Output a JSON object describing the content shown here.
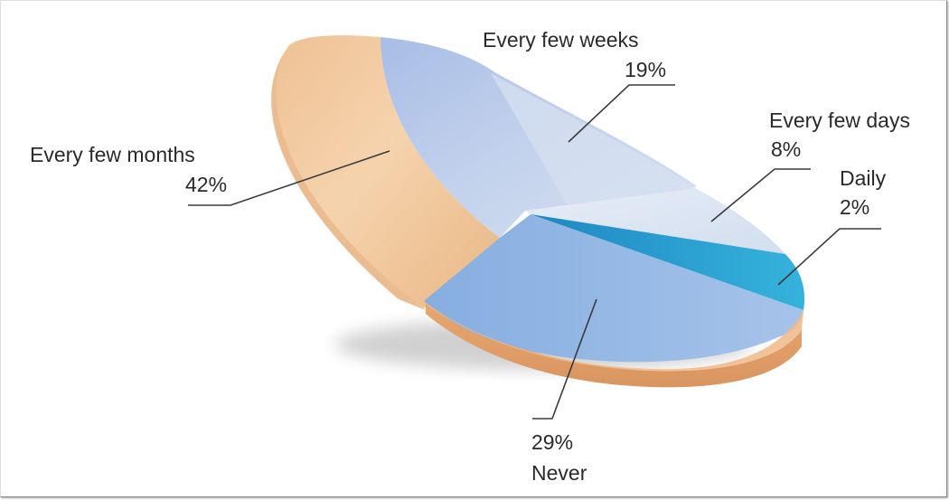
{
  "chart_data": {
    "type": "pie",
    "style": "3d-exploded",
    "legend": "none",
    "slices": [
      {
        "label": "Every few months",
        "value": 42,
        "value_label": "42%",
        "color": "#f2c99a"
      },
      {
        "label": "Every few weeks",
        "value": 19,
        "value_label": "19%",
        "color": "#b4c6e6"
      },
      {
        "label": "Every few days",
        "value": 8,
        "value_label": "8%",
        "color": "#dce6f2"
      },
      {
        "label": "Daily",
        "value": 2,
        "value_label": "2%",
        "color": "#2f9fcf"
      },
      {
        "label": "Never",
        "value": 29,
        "value_label": "29%",
        "color": "#93b7e3"
      }
    ]
  }
}
